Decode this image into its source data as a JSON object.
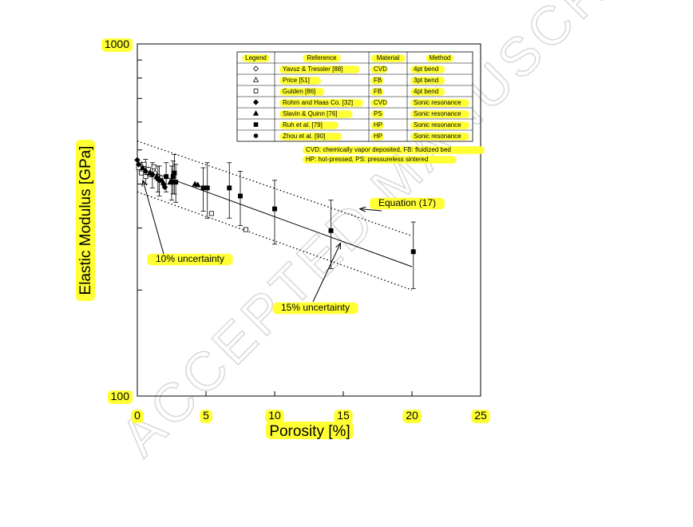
{
  "chart_data": {
    "type": "scatter",
    "xlabel": "Porosity [%]",
    "ylabel": "Elastic Modulus [GPa]",
    "xlim": [
      0,
      25
    ],
    "ylim": [
      100,
      1000
    ],
    "yscale": "log",
    "x_ticks": [
      "0",
      "5",
      "10",
      "15",
      "20",
      "25"
    ],
    "y_ticks": [
      "100",
      "1000"
    ],
    "grid": false,
    "legend_position": "top-right",
    "legend_table": {
      "headers": [
        "Legend",
        "Reference",
        "Material",
        "Method"
      ],
      "rows": [
        {
          "marker": "diamond-open",
          "reference": "Yavuz & Tressler [88]",
          "material": "CVD",
          "method": "4pt bend"
        },
        {
          "marker": "triangle-open",
          "reference": "Price [51]",
          "material": "FB",
          "method": "3pt bend"
        },
        {
          "marker": "square-open",
          "reference": "Gulden [86]",
          "material": "FB",
          "method": "4pt bend"
        },
        {
          "marker": "diamond-filled",
          "reference": "Rohm and Haas Co. [32]",
          "material": "CVD",
          "method": "Sonic resonance"
        },
        {
          "marker": "triangle-filled",
          "reference": "Slavin & Quinn [76]",
          "material": "PS",
          "method": "Sonic resonance"
        },
        {
          "marker": "square-filled",
          "reference": "Ruh et al. [79]",
          "material": "HP",
          "method": "Sonic resonance"
        },
        {
          "marker": "circle-filled",
          "reference": "Zhou et al. [90]",
          "material": "HP",
          "method": "Sonic resonance"
        }
      ]
    },
    "footnotes": [
      "CVD: chemically vapor deposited, FB: fluidized bed",
      "HP: hot-pressed, PS: pressureless sintered"
    ],
    "annotations": [
      {
        "text": "Equation (17)",
        "points_to": [
          16.2,
          340
        ]
      },
      {
        "text": "10% uncertainty",
        "points_to": [
          0.4,
          410
        ]
      },
      {
        "text": "15% uncertainty",
        "points_to": [
          14.8,
          272
        ]
      }
    ],
    "fit_curves": [
      {
        "label": "Equation (17)",
        "style": "solid",
        "x": [
          0,
          20
        ],
        "y": [
          448,
          233
        ]
      },
      {
        "label": "upper bound",
        "style": "dotted",
        "x": [
          0,
          20
        ],
        "y": [
          530,
          285
        ]
      },
      {
        "label": "lower bound",
        "style": "dotted",
        "x": [
          0,
          20
        ],
        "y": [
          380,
          200
        ]
      }
    ],
    "series": [
      {
        "marker": "diamond-open",
        "points": [
          {
            "x": 0.2,
            "y": 445
          },
          {
            "x": 0.5,
            "y": 430
          }
        ]
      },
      {
        "marker": "triangle-open",
        "points": [
          {
            "x": 0.3,
            "y": 455
          },
          {
            "x": 0.8,
            "y": 440
          },
          {
            "x": 1.3,
            "y": 432
          }
        ]
      },
      {
        "marker": "square-open",
        "points": [
          {
            "x": 0.1,
            "y": 445
          },
          {
            "x": 0.3,
            "y": 430
          },
          {
            "x": 0.5,
            "y": 455
          },
          {
            "x": 0.6,
            "y": 420
          },
          {
            "x": 0.8,
            "y": 440
          },
          {
            "x": 1.0,
            "y": 425
          },
          {
            "x": 1.2,
            "y": 448
          },
          {
            "x": 1.5,
            "y": 415
          },
          {
            "x": 5.4,
            "y": 330
          },
          {
            "x": 7.9,
            "y": 297
          }
        ]
      },
      {
        "marker": "diamond-filled",
        "points": [
          {
            "x": 0.0,
            "y": 468
          },
          {
            "x": 0.1,
            "y": 455
          },
          {
            "x": 1.9,
            "y": 400
          },
          {
            "x": 2.0,
            "y": 392
          }
        ]
      },
      {
        "marker": "triangle-filled",
        "points": [
          {
            "x": 0.4,
            "y": 445
          },
          {
            "x": 0.9,
            "y": 430
          },
          {
            "x": 1.4,
            "y": 420
          },
          {
            "x": 1.8,
            "y": 410
          },
          {
            "x": 2.4,
            "y": 405
          },
          {
            "x": 4.2,
            "y": 400
          },
          {
            "x": 4.4,
            "y": 398
          }
        ]
      },
      {
        "marker": "square-filled",
        "errors": true,
        "points": [
          {
            "x": 1.5,
            "y": 415,
            "err": 35
          },
          {
            "x": 2.1,
            "y": 420,
            "err": 40
          },
          {
            "x": 2.5,
            "y": 405,
            "err": 45
          },
          {
            "x": 2.6,
            "y": 420,
            "err": 45
          },
          {
            "x": 2.7,
            "y": 430,
            "err": 55
          },
          {
            "x": 2.8,
            "y": 405,
            "err": 50
          },
          {
            "x": 4.8,
            "y": 390,
            "err": 55
          },
          {
            "x": 5.1,
            "y": 390,
            "err": 70
          },
          {
            "x": 6.7,
            "y": 390,
            "err": 70
          },
          {
            "x": 7.5,
            "y": 370,
            "err": 65
          },
          {
            "x": 10.0,
            "y": 340,
            "err": 70
          },
          {
            "x": 14.1,
            "y": 295,
            "err": 65
          },
          {
            "x": 20.1,
            "y": 257,
            "err": 55
          }
        ]
      },
      {
        "marker": "circle-filled",
        "errors": true,
        "points": [
          {
            "x": 0.6,
            "y": 435,
            "err": 35
          },
          {
            "x": 1.1,
            "y": 425,
            "err": 35
          },
          {
            "x": 1.6,
            "y": 410,
            "err": 40
          }
        ]
      }
    ]
  },
  "watermark_text": "ACCEPTED MANUSCRIPT"
}
